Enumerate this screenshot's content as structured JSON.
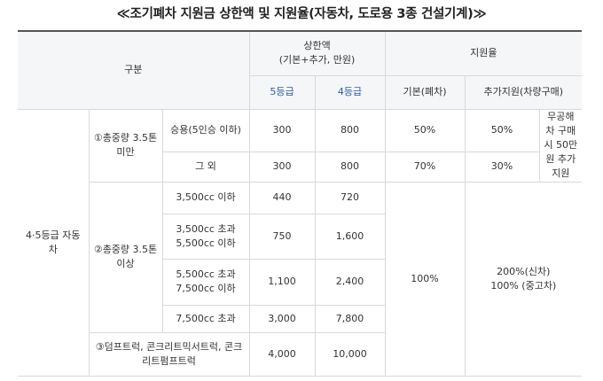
{
  "title": "≪조기폐차 지원금 상한액 및 지원율(자동차, 도로용 3종 건설기계)≫",
  "header": {
    "category": "구분",
    "cap": "상한액",
    "cap_sub": "(기본+추가, 만원)",
    "rate": "지원율",
    "grade5": "5등급",
    "grade4": "4등급",
    "basic": "기본(폐차)",
    "extra": "추가지원(차량구매)"
  },
  "rows": {
    "group": "4·5등급 자동차",
    "sub1": "①총중량 3.5톤 미만",
    "sub1_a": "승용(5인승 이하)",
    "sub1_a_g5": "300",
    "sub1_a_g4": "800",
    "sub1_a_basic": "50%",
    "sub1_a_extra": "50%",
    "sub1_note": "무공해차 구매 시 50만원 추가 지원",
    "sub1_b": "그 외",
    "sub1_b_g5": "300",
    "sub1_b_g4": "800",
    "sub1_b_basic": "70%",
    "sub1_b_extra": "30%",
    "sub2": "②총중량 3.5톤 이상",
    "sub2_a": "3,500cc 이하",
    "sub2_a_g5": "440",
    "sub2_a_g4": "720",
    "sub2_b": "3,500cc 초과 5,500cc 이하",
    "sub2_b_g5": "750",
    "sub2_b_g4": "1,600",
    "sub2_c": "5,500cc 초과 7,500cc 이하",
    "sub2_c_g5": "1,100",
    "sub2_c_g4": "2,400",
    "sub2_d": "7,500cc 초과",
    "sub2_d_g5": "3,000",
    "sub2_d_g4": "7,800",
    "sub3": "③덤프트럭, 콘크리트믹서트럭, 콘크리트펌프트럭",
    "sub3_g5": "4,000",
    "sub3_g4": "10,000",
    "big_basic": "100%",
    "big_extra_1": "200%(신차)",
    "big_extra_2": "100% (중고차)"
  }
}
